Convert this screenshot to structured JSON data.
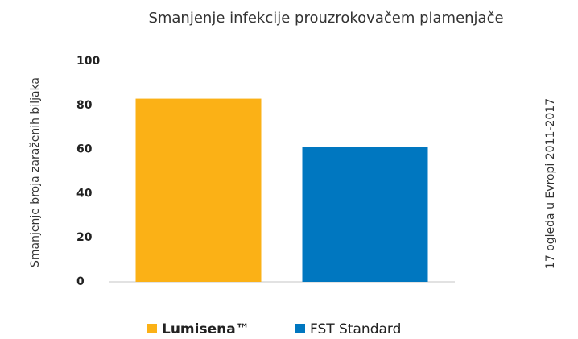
{
  "chart_data": {
    "type": "bar",
    "title": "Smanjenje infekcije prouzrokovačem plamenjače",
    "y_label": "Smanjenje broja zaraženih biljaka",
    "annotation": "17 ogleda u Evropi 2011-2017",
    "categories": [
      null
    ],
    "series": [
      {
        "name": "Lumisena™",
        "color": "#fbb116",
        "values": [
          83
        ]
      },
      {
        "name": "FST Standard",
        "color": "#0077c0",
        "values": [
          61
        ]
      }
    ],
    "ylim": [
      0,
      100
    ],
    "yticks": [
      0,
      20,
      40,
      60,
      80,
      100
    ],
    "grid": false
  }
}
